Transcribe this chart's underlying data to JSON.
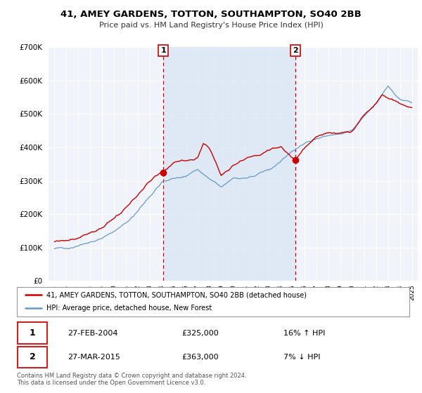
{
  "title": "41, AMEY GARDENS, TOTTON, SOUTHAMPTON, SO40 2BB",
  "subtitle": "Price paid vs. HM Land Registry's House Price Index (HPI)",
  "footer": "Contains HM Land Registry data © Crown copyright and database right 2024.\nThis data is licensed under the Open Government Licence v3.0.",
  "legend_line1": "41, AMEY GARDENS, TOTTON, SOUTHAMPTON, SO40 2BB (detached house)",
  "legend_line2": "HPI: Average price, detached house, New Forest",
  "sale1_date": "27-FEB-2004",
  "sale1_price": "£325,000",
  "sale1_hpi": "16% ↑ HPI",
  "sale1_x": 2004.15,
  "sale1_y": 325000,
  "sale2_date": "27-MAR-2015",
  "sale2_price": "£363,000",
  "sale2_hpi": "7% ↓ HPI",
  "sale2_x": 2015.23,
  "sale2_y": 363000,
  "price_color": "#cc0000",
  "hpi_color": "#6699cc",
  "shade_color": "#dce8f5",
  "background_color": "#ffffff",
  "plot_background": "#f0f4fa",
  "grid_color": "#cccccc",
  "ylim": [
    0,
    700000
  ],
  "yticks": [
    0,
    100000,
    200000,
    300000,
    400000,
    500000,
    600000,
    700000
  ],
  "xlim": [
    1994.5,
    2025.5
  ]
}
